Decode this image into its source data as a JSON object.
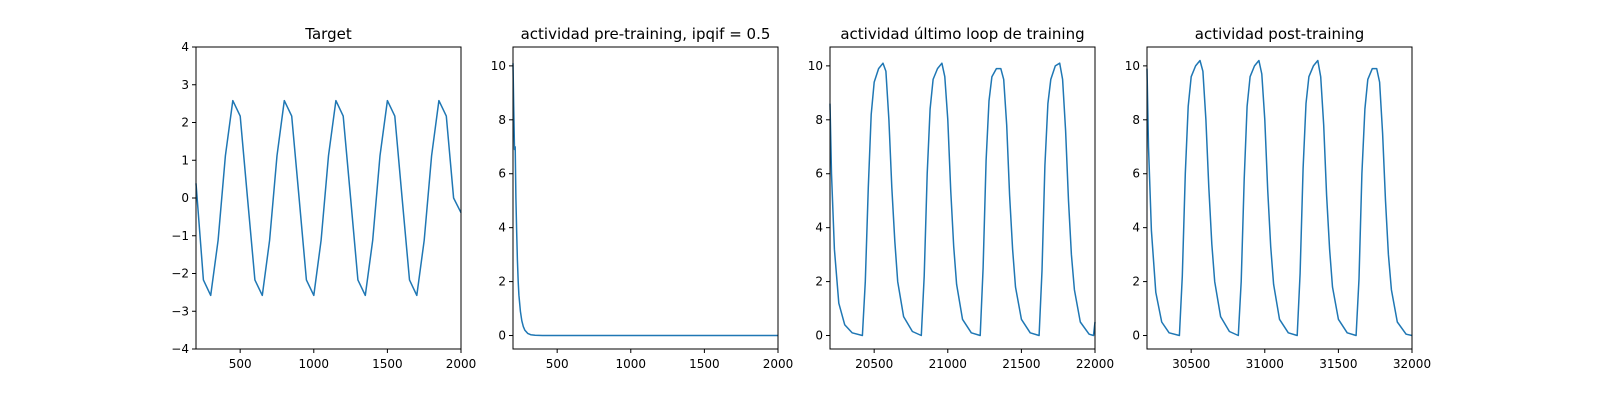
{
  "chart_data": [
    {
      "type": "line",
      "title": "Target",
      "xlabel": "",
      "ylabel": "",
      "xlim": [
        200,
        2000
      ],
      "ylim": [
        -4,
        4
      ],
      "xticks": [
        500,
        1000,
        1500,
        2000
      ],
      "xtick_labels": [
        "500",
        "1000",
        "1500",
        "2000"
      ],
      "yticks": [
        -4,
        -3,
        -2,
        -1,
        0,
        1,
        2,
        3,
        4
      ],
      "ytick_labels": [
        "−4",
        "−3",
        "−2",
        "−1",
        "0",
        "1",
        "2",
        "3",
        "4"
      ],
      "grid": false,
      "series": [
        {
          "color": "#1f77b4",
          "x": [
            200,
            250,
            300,
            350,
            400,
            450,
            500,
            550,
            600,
            650,
            700,
            750,
            800,
            850,
            900,
            950,
            1000,
            1050,
            1100,
            1150,
            1200,
            1250,
            1300,
            1350,
            1400,
            1450,
            1500,
            1550,
            1600,
            1650,
            1700,
            1750,
            1800,
            1850,
            1900,
            1950,
            2000
          ],
          "y": [
            0.39,
            -2.17,
            -2.58,
            -1.12,
            1.12,
            2.58,
            2.17,
            0,
            -2.17,
            -2.58,
            -1.12,
            1.12,
            2.58,
            2.17,
            0,
            -2.17,
            -2.58,
            -1.12,
            1.12,
            2.58,
            2.17,
            0,
            -2.17,
            -2.58,
            -1.12,
            1.12,
            2.58,
            2.17,
            0,
            -2.17,
            -2.58,
            -1.12,
            1.12,
            2.58,
            2.17,
            0,
            -0.39
          ]
        }
      ]
    },
    {
      "type": "line",
      "title": "actividad pre-training, ipqif = 0.5",
      "xlabel": "",
      "ylabel": "",
      "xlim": [
        200,
        2000
      ],
      "ylim": [
        -0.5,
        10.7
      ],
      "xticks": [
        500,
        1000,
        1500,
        2000
      ],
      "xtick_labels": [
        "500",
        "1000",
        "1500",
        "2000"
      ],
      "yticks": [
        0,
        2,
        4,
        6,
        8,
        10
      ],
      "ytick_labels": [
        "0",
        "2",
        "4",
        "6",
        "8",
        "10"
      ],
      "grid": false,
      "series": [
        {
          "color": "#1f77b4",
          "x": [
            200,
            205,
            210,
            215,
            220,
            225,
            230,
            235,
            240,
            250,
            260,
            270,
            280,
            300,
            320,
            350,
            400,
            500,
            700,
            1000,
            1500,
            2000
          ],
          "y": [
            10.1,
            8.5,
            6.9,
            7.0,
            5.1,
            3.8,
            2.8,
            2.0,
            1.5,
            0.9,
            0.55,
            0.33,
            0.2,
            0.08,
            0.03,
            0.01,
            0,
            0,
            0,
            0,
            0,
            0
          ]
        }
      ]
    },
    {
      "type": "line",
      "title": "actividad último loop de training",
      "xlabel": "",
      "ylabel": "",
      "xlim": [
        20200,
        22000
      ],
      "ylim": [
        -0.5,
        10.7
      ],
      "xticks": [
        20500,
        21000,
        21500,
        22000
      ],
      "xtick_labels": [
        "20500",
        "21000",
        "21500",
        "22000"
      ],
      "yticks": [
        0,
        2,
        4,
        6,
        8,
        10
      ],
      "ytick_labels": [
        "0",
        "2",
        "4",
        "6",
        "8",
        "10"
      ],
      "grid": false,
      "series": [
        {
          "color": "#1f77b4",
          "x": [
            20200,
            20210,
            20230,
            20260,
            20300,
            20350,
            20420,
            20440,
            20460,
            20480,
            20500,
            20530,
            20560,
            20580,
            20600,
            20620,
            20640,
            20660,
            20700,
            20760,
            20820,
            20840,
            20860,
            20880,
            20900,
            20930,
            20960,
            20980,
            21000,
            21020,
            21040,
            21060,
            21100,
            21160,
            21220,
            21240,
            21260,
            21280,
            21300,
            21330,
            21360,
            21380,
            21400,
            21420,
            21440,
            21460,
            21500,
            21560,
            21620,
            21640,
            21660,
            21680,
            21700,
            21730,
            21760,
            21780,
            21800,
            21820,
            21840,
            21860,
            21900,
            21960,
            21990,
            22000
          ],
          "y": [
            8.6,
            6.0,
            3.2,
            1.2,
            0.4,
            0.1,
            0.0,
            2.0,
            5.5,
            8.2,
            9.4,
            9.9,
            10.1,
            9.8,
            8.0,
            5.5,
            3.5,
            2.0,
            0.7,
            0.15,
            0.0,
            2.2,
            6.0,
            8.4,
            9.5,
            9.9,
            10.1,
            9.6,
            8.0,
            5.4,
            3.3,
            1.9,
            0.6,
            0.1,
            0.0,
            2.5,
            6.5,
            8.7,
            9.6,
            9.9,
            9.9,
            9.5,
            7.8,
            5.2,
            3.2,
            1.8,
            0.6,
            0.1,
            0.0,
            2.4,
            6.3,
            8.6,
            9.5,
            10.0,
            10.1,
            9.5,
            7.6,
            5.0,
            3.0,
            1.7,
            0.5,
            0.05,
            0.0,
            0.5
          ]
        }
      ]
    },
    {
      "type": "line",
      "title": "actividad post-training",
      "xlabel": "",
      "ylabel": "",
      "xlim": [
        30200,
        32000
      ],
      "ylim": [
        -0.5,
        10.7
      ],
      "xticks": [
        30500,
        31000,
        31500,
        32000
      ],
      "xtick_labels": [
        "30500",
        "31000",
        "31500",
        "32000"
      ],
      "yticks": [
        0,
        2,
        4,
        6,
        8,
        10
      ],
      "ytick_labels": [
        "0",
        "2",
        "4",
        "6",
        "8",
        "10"
      ],
      "grid": false,
      "series": [
        {
          "color": "#1f77b4",
          "x": [
            30200,
            30210,
            30230,
            30260,
            30300,
            30350,
            30420,
            30440,
            30460,
            30480,
            30500,
            30530,
            30560,
            30580,
            30600,
            30620,
            30640,
            30660,
            30700,
            30760,
            30820,
            30840,
            30860,
            30880,
            30900,
            30930,
            30960,
            30980,
            31000,
            31020,
            31040,
            31060,
            31100,
            31160,
            31220,
            31240,
            31260,
            31280,
            31300,
            31330,
            31360,
            31380,
            31400,
            31420,
            31440,
            31460,
            31500,
            31560,
            31620,
            31640,
            31660,
            31680,
            31700,
            31730,
            31760,
            31780,
            31800,
            31820,
            31840,
            31860,
            31900,
            31960,
            32000
          ],
          "y": [
            9.9,
            7.0,
            3.9,
            1.6,
            0.5,
            0.1,
            0.0,
            2.2,
            6.0,
            8.5,
            9.6,
            10.0,
            10.2,
            9.8,
            8.0,
            5.5,
            3.4,
            2.0,
            0.7,
            0.15,
            0.0,
            2.0,
            5.8,
            8.5,
            9.6,
            10.0,
            10.2,
            9.7,
            8.0,
            5.4,
            3.3,
            1.9,
            0.6,
            0.1,
            0.0,
            2.3,
            6.2,
            8.6,
            9.6,
            10.0,
            10.2,
            9.6,
            7.8,
            5.2,
            3.2,
            1.8,
            0.6,
            0.1,
            0.0,
            2.1,
            6.0,
            8.4,
            9.5,
            9.9,
            9.9,
            9.4,
            7.5,
            5.0,
            3.0,
            1.7,
            0.5,
            0.05,
            0.0
          ]
        }
      ]
    }
  ]
}
